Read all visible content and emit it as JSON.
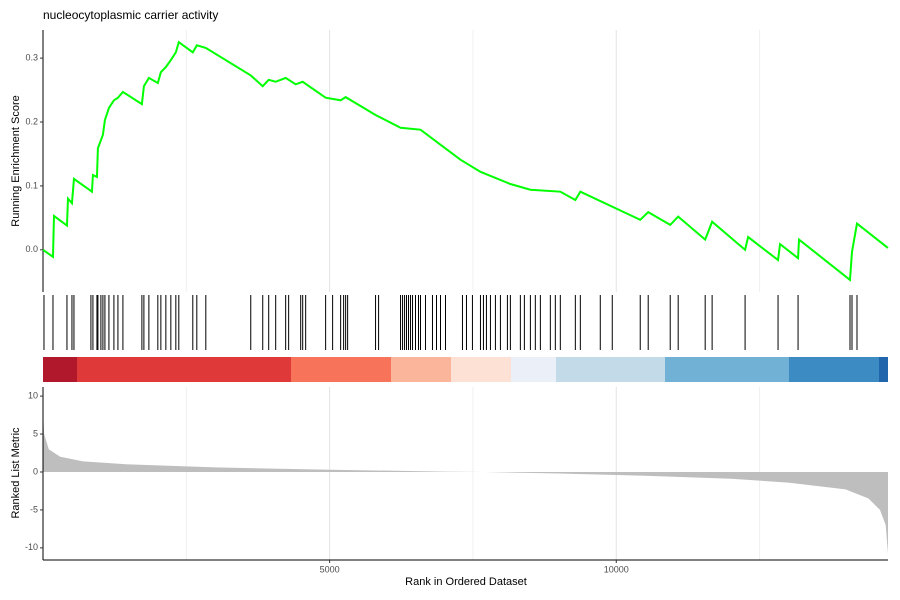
{
  "chart_data": [
    {
      "type": "line",
      "title": "nucleocytoplasmic carrier activity",
      "y_label": "Running Enrichment Score",
      "color": "#00ff00",
      "x": [
        0,
        174,
        192,
        418,
        436,
        505,
        540,
        854,
        871,
        941,
        958,
        1045,
        1080,
        1150,
        1237,
        1307,
        1394,
        1725,
        1760,
        1847,
        2003,
        2056,
        2143,
        2230,
        2317,
        2369,
        2613,
        2683,
        2840,
        3624,
        3833,
        3937,
        4059,
        4233,
        4408,
        4530,
        4930,
        5192,
        5279,
        5801,
        6237,
        6585,
        7282,
        7631,
        8153,
        8502,
        9024,
        9286,
        9373,
        10418,
        10557,
        10941,
        11080,
        11551,
        11672,
        12247,
        12300,
        12822,
        12857,
        13171,
        13188,
        14077,
        14112,
        14199,
        14739
      ],
      "values": [
        0,
        -0.011,
        0.053,
        0.038,
        0.08,
        0.073,
        0.111,
        0.091,
        0.117,
        0.114,
        0.159,
        0.18,
        0.203,
        0.222,
        0.234,
        0.238,
        0.247,
        0.228,
        0.256,
        0.269,
        0.261,
        0.278,
        0.286,
        0.297,
        0.309,
        0.325,
        0.309,
        0.32,
        0.316,
        0.273,
        0.256,
        0.266,
        0.263,
        0.269,
        0.259,
        0.263,
        0.238,
        0.234,
        0.239,
        0.211,
        0.191,
        0.188,
        0.141,
        0.122,
        0.103,
        0.094,
        0.091,
        0.078,
        0.091,
        0.047,
        0.059,
        0.039,
        0.052,
        0.016,
        0.044,
        0,
        0.02,
        -0.016,
        0.009,
        -0.013,
        0.016,
        -0.047,
        -0.003,
        0.041,
        0.003
      ],
      "xlim": [
        0,
        14740
      ],
      "ylim": [
        -0.066,
        0.344
      ],
      "yticks": [
        {
          "value": 0,
          "label": "0.0"
        },
        0.1,
        0.2,
        0.3
      ]
    },
    {
      "type": "rug",
      "color": "#000000",
      "xlim": [
        0,
        14740
      ],
      "x": [
        17,
        174,
        418,
        505,
        540,
        836,
        871,
        941,
        958,
        1010,
        1045,
        1080,
        1150,
        1237,
        1307,
        1394,
        1725,
        1760,
        1847,
        2003,
        2056,
        2143,
        2230,
        2317,
        2369,
        2613,
        2683,
        2840,
        3624,
        3833,
        3937,
        4059,
        4233,
        4285,
        4495,
        4530,
        4582,
        4930,
        5052,
        5192,
        5244,
        5279,
        5314,
        5801,
        5854,
        6237,
        6272,
        6307,
        6341,
        6376,
        6411,
        6446,
        6498,
        6550,
        6585,
        6672,
        6794,
        6864,
        6934,
        7021,
        7317,
        7387,
        7491,
        7631,
        7683,
        7735,
        7805,
        7892,
        7979,
        8101,
        8153,
        8327,
        8397,
        8502,
        8588,
        8676,
        8850,
        8937,
        9024,
        9286,
        9373,
        9721,
        9930,
        10418,
        10557,
        10941,
        11080,
        11551,
        11672,
        12247,
        12822,
        13171,
        14077,
        14112,
        14199
      ]
    },
    {
      "type": "area",
      "x_label": "Rank in Ordered Dataset",
      "y_label": "Ranked List Metric",
      "color": "#bebebe",
      "x": [
        0,
        20,
        100,
        300,
        700,
        1500,
        3000,
        5000,
        7000,
        7700,
        9000,
        10500,
        12000,
        13000,
        14000,
        14400,
        14600,
        14700,
        14740
      ],
      "values": [
        8,
        5,
        3,
        2,
        1.4,
        1.0,
        0.6,
        0.3,
        0.05,
        0,
        -0.2,
        -0.5,
        -0.9,
        -1.4,
        -2.3,
        -3.5,
        -5,
        -7,
        -10.8
      ],
      "xlim": [
        0,
        14740
      ],
      "ylim": [
        -11.6,
        11.2
      ],
      "xticks": [
        5000,
        10000
      ],
      "x_minor_ticks": [
        2500,
        7500,
        12500
      ],
      "yticks": [
        -10,
        -5,
        0,
        5,
        10
      ],
      "grid": true
    }
  ]
}
